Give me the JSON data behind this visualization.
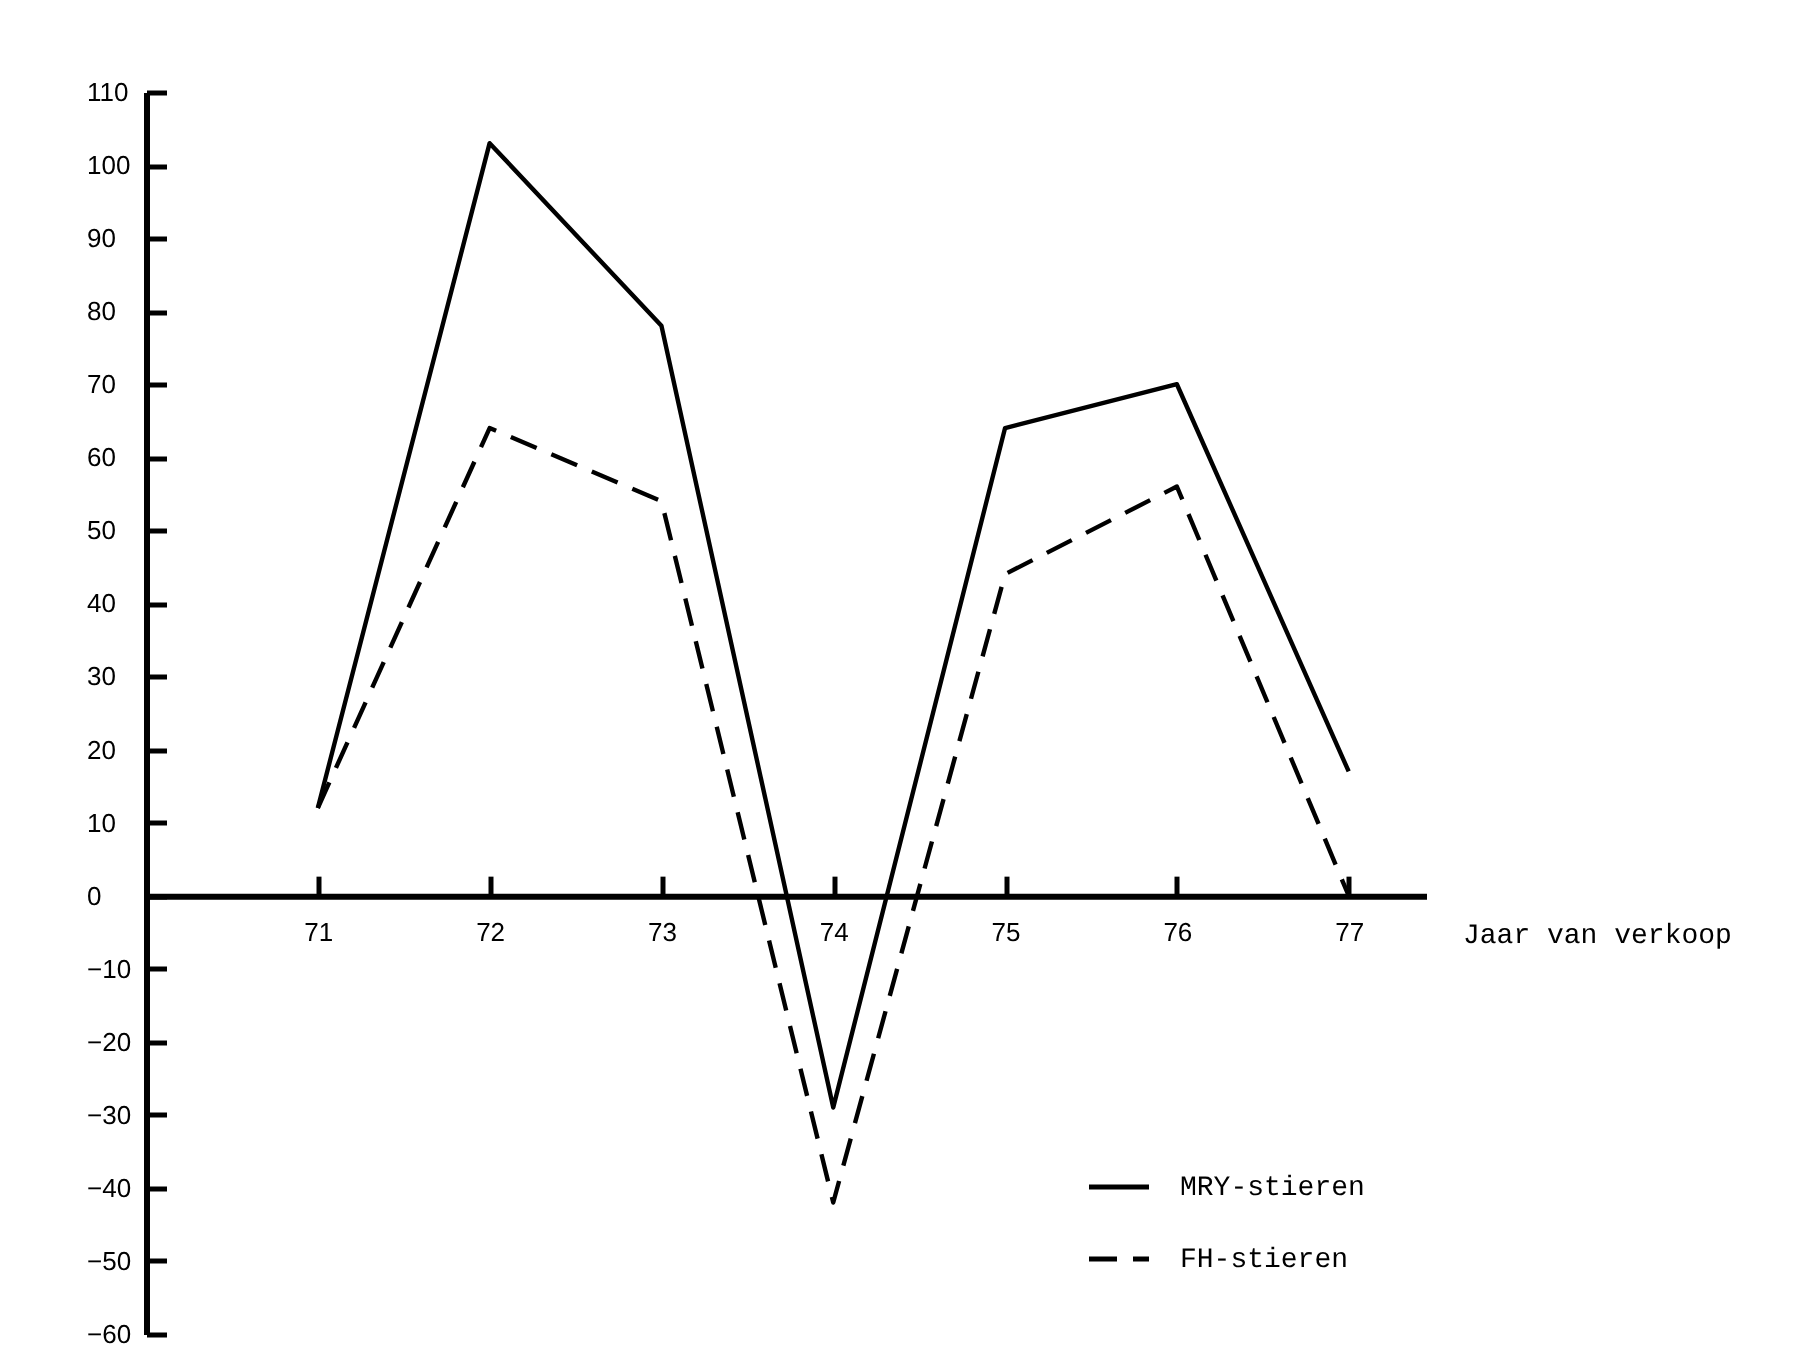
{
  "chart_data": {
    "type": "line",
    "xlabel": "Jaar van verkoop",
    "x": [
      71,
      72,
      73,
      74,
      75,
      76,
      77
    ],
    "xlim": [
      70,
      77.45
    ],
    "xticks": [
      71,
      72,
      73,
      74,
      75,
      76,
      77
    ],
    "ylim": [
      -60,
      110
    ],
    "yticks": [
      -60,
      -50,
      -40,
      -30,
      -20,
      -10,
      0,
      10,
      20,
      30,
      40,
      50,
      60,
      70,
      80,
      90,
      100,
      110
    ],
    "series": [
      {
        "name": "MRY-stieren",
        "color": "#000000",
        "line_style": "solid",
        "values": [
          12,
          103,
          78,
          -29,
          64,
          70,
          17
        ]
      },
      {
        "name": "FH-stieren",
        "color": "#000000",
        "line_style": "dashed",
        "values": [
          12,
          64,
          54,
          -42,
          44,
          56,
          0
        ]
      }
    ],
    "grid": false,
    "legend": "bottom right",
    "marker": "none"
  }
}
